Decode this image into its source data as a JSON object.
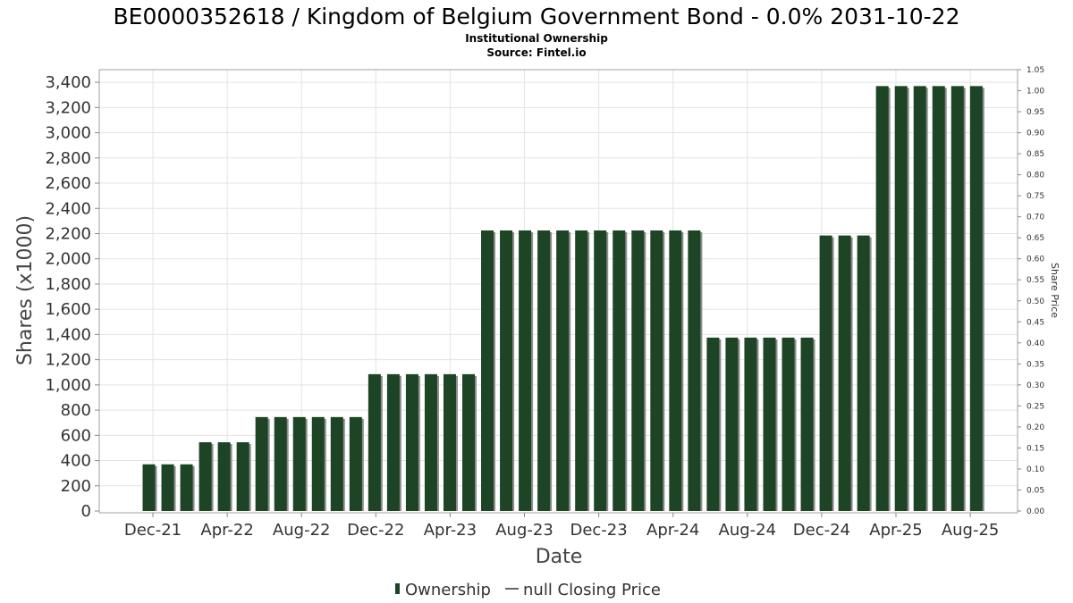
{
  "colors": {
    "bar": "#1e4426",
    "bar_shadow": "#8d8d8d",
    "grid": "#e3e3e3",
    "plot_border": "#a0a0a0"
  },
  "chart_data": {
    "type": "bar",
    "title": "BE0000352618 / Kingdom of Belgium Government Bond - 0.0% 2031-10-22",
    "subtitle": "Institutional Ownership",
    "source": "Source: Fintel.io",
    "xlabel": "Date",
    "ylabel": "Shares (x1000)",
    "y2label": "Share Price",
    "ylim": [
      0,
      3500
    ],
    "y2lim": [
      0,
      1.05
    ],
    "yticks": [
      "0",
      "200",
      "400",
      "600",
      "800",
      "1,000",
      "1,200",
      "1,400",
      "1,600",
      "1,800",
      "2,000",
      "2,200",
      "2,400",
      "2,600",
      "2,800",
      "3,000",
      "3,200",
      "3,400"
    ],
    "y2ticks": [
      "0.00",
      "0.05",
      "0.10",
      "0.15",
      "0.20",
      "0.25",
      "0.30",
      "0.35",
      "0.40",
      "0.45",
      "0.50",
      "0.55",
      "0.60",
      "0.65",
      "0.70",
      "0.75",
      "0.80",
      "0.85",
      "0.90",
      "0.95",
      "1.00",
      "1.05"
    ],
    "xticks": [
      "Dec-21",
      "Apr-22",
      "Aug-22",
      "Dec-22",
      "Apr-23",
      "Aug-23",
      "Dec-23",
      "Apr-24",
      "Aug-24",
      "Dec-24",
      "Apr-25",
      "Aug-25"
    ],
    "grid": true,
    "legend_position": "bottom",
    "series": [
      {
        "name": "Ownership",
        "values": [
          370,
          370,
          370,
          545,
          545,
          545,
          745,
          745,
          745,
          745,
          745,
          745,
          1085,
          1085,
          1085,
          1085,
          1085,
          1085,
          2225,
          2225,
          2225,
          2225,
          2225,
          2225,
          2225,
          2225,
          2225,
          2225,
          2225,
          2225,
          1375,
          1375,
          1375,
          1375,
          1375,
          1375,
          2185,
          2185,
          2185,
          3370,
          3370,
          3370,
          3370,
          3370,
          3370
        ]
      }
    ],
    "legend": [
      "Ownership",
      "null Closing Price"
    ]
  }
}
